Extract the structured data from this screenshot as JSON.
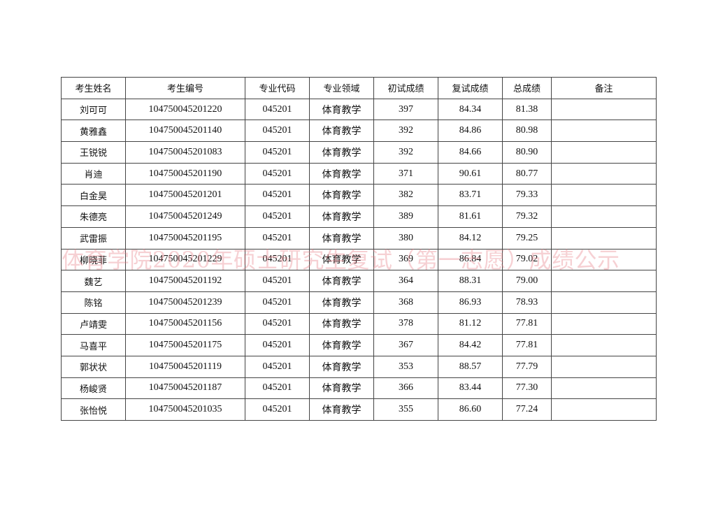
{
  "table": {
    "headers": [
      "考生姓名",
      "考生编号",
      "专业代码",
      "专业领域",
      "初试成绩",
      "复试成绩",
      "总成绩",
      "备注"
    ],
    "rows": [
      [
        "刘可可",
        "104750045201220",
        "045201",
        "体育教学",
        "397",
        "84.34",
        "81.38",
        ""
      ],
      [
        "黄雅鑫",
        "104750045201140",
        "045201",
        "体育教学",
        "392",
        "84.86",
        "80.98",
        ""
      ],
      [
        "王锐锐",
        "104750045201083",
        "045201",
        "体育教学",
        "392",
        "84.66",
        "80.90",
        ""
      ],
      [
        "肖迪",
        "104750045201190",
        "045201",
        "体育教学",
        "371",
        "90.61",
        "80.77",
        ""
      ],
      [
        "白金昊",
        "104750045201201",
        "045201",
        "体育教学",
        "382",
        "83.71",
        "79.33",
        ""
      ],
      [
        "朱德亮",
        "104750045201249",
        "045201",
        "体育教学",
        "389",
        "81.61",
        "79.32",
        ""
      ],
      [
        "武雷振",
        "104750045201195",
        "045201",
        "体育教学",
        "380",
        "84.12",
        "79.25",
        ""
      ],
      [
        "柳晓菲",
        "104750045201229",
        "045201",
        "体育教学",
        "369",
        "86.84",
        "79.02",
        ""
      ],
      [
        "魏艺",
        "104750045201192",
        "045201",
        "体育教学",
        "364",
        "88.31",
        "79.00",
        ""
      ],
      [
        "陈铭",
        "104750045201239",
        "045201",
        "体育教学",
        "368",
        "86.93",
        "78.93",
        ""
      ],
      [
        "卢靖雯",
        "104750045201156",
        "045201",
        "体育教学",
        "378",
        "81.12",
        "77.81",
        ""
      ],
      [
        "马喜平",
        "104750045201175",
        "045201",
        "体育教学",
        "367",
        "84.42",
        "77.81",
        ""
      ],
      [
        "郭状状",
        "104750045201119",
        "045201",
        "体育教学",
        "353",
        "88.57",
        "77.79",
        ""
      ],
      [
        "杨峻贤",
        "104750045201187",
        "045201",
        "体育教学",
        "366",
        "83.44",
        "77.30",
        ""
      ],
      [
        "张怡悦",
        "104750045201035",
        "045201",
        "体育教学",
        "355",
        "86.60",
        "77.24",
        ""
      ]
    ]
  },
  "watermark": "体育学院2020年硕士研究生复试（第一志愿）成绩公示",
  "colors": {
    "watermark": "#e6788a",
    "border": "#444444"
  }
}
